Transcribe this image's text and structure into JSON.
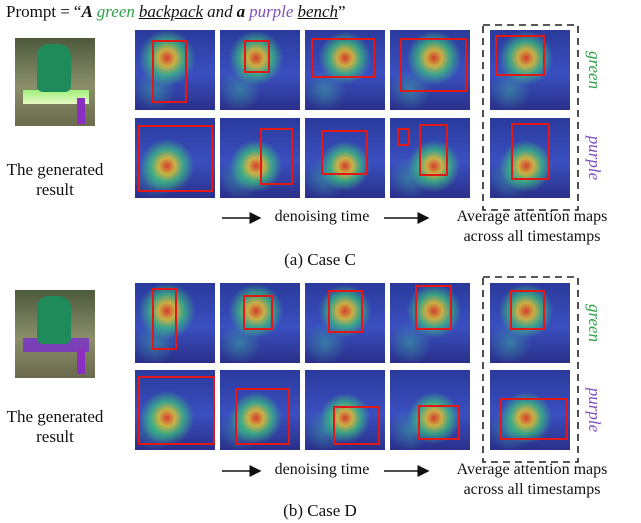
{
  "prompt": {
    "label": "Prompt =",
    "open": "“",
    "parts": [
      "A",
      "green",
      "backpack",
      "and",
      "a",
      "purple",
      "bench"
    ],
    "close": "”"
  },
  "cases": [
    {
      "result_caption_line1": "The generated",
      "result_caption_line2": "result",
      "rows": [
        "green",
        "purple"
      ],
      "timeline_label": "denoising time",
      "average_label_line1": "Average attention maps",
      "average_label_line2": "across all timestamps",
      "caption": "(a) Case C"
    },
    {
      "result_caption_line1": "The generated",
      "result_caption_line2": "result",
      "rows": [
        "green",
        "purple"
      ],
      "timeline_label": "denoising time",
      "average_label_line1": "Average attention maps",
      "average_label_line2": "across all timestamps",
      "caption": "(b) Case D"
    }
  ]
}
